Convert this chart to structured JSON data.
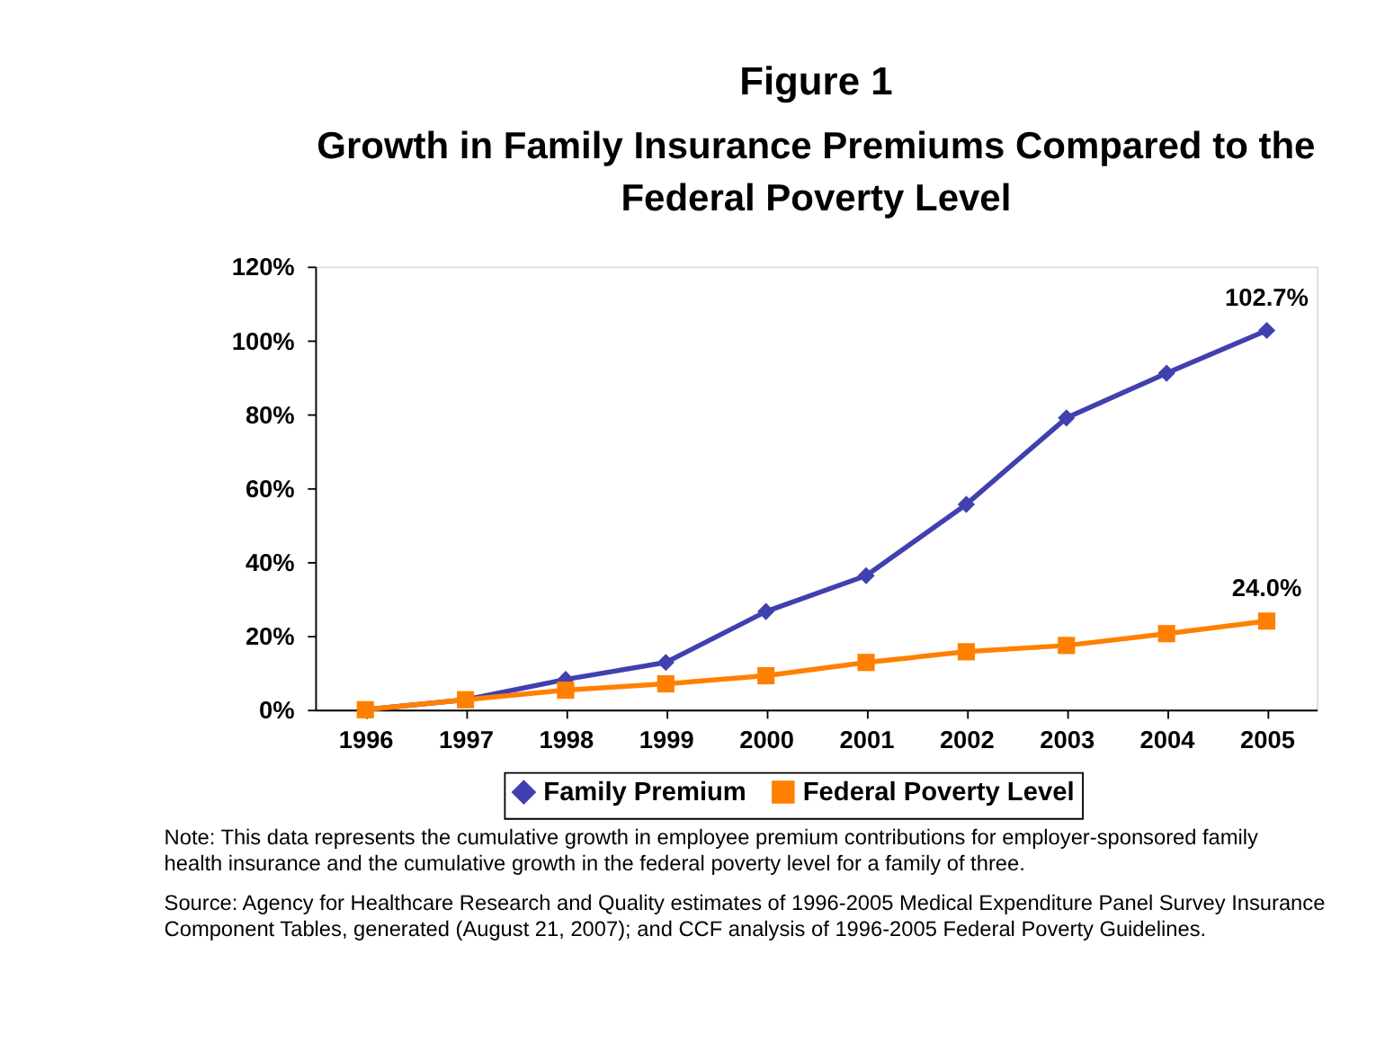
{
  "chart_data": {
    "type": "line",
    "title": "Figure 1",
    "subtitle": "Growth in Family Insurance Premiums Compared to the Federal Poverty Level",
    "categories": [
      "1996",
      "1997",
      "1998",
      "1999",
      "2000",
      "2001",
      "2002",
      "2003",
      "2004",
      "2005"
    ],
    "series": [
      {
        "name": "Family Premium",
        "color": "#4040b0",
        "marker": "diamond",
        "values": [
          0,
          2.7,
          8.2,
          12.8,
          26.6,
          36.3,
          55.6,
          79.0,
          91.1,
          102.7
        ],
        "value_labels": [
          null,
          null,
          null,
          null,
          null,
          null,
          null,
          null,
          null,
          "102.7%"
        ]
      },
      {
        "name": "Federal Poverty Level",
        "color": "#ff8000",
        "marker": "square",
        "values": [
          0,
          2.7,
          5.3,
          7.0,
          9.2,
          12.8,
          15.7,
          17.4,
          20.6,
          24.0
        ],
        "value_labels": [
          null,
          null,
          null,
          null,
          null,
          null,
          null,
          null,
          null,
          "24.0%"
        ]
      }
    ],
    "ylim": [
      0,
      120
    ],
    "yticks": [
      {
        "value": 0,
        "label": "0%"
      },
      {
        "value": 20,
        "label": "20%"
      },
      {
        "value": 40,
        "label": "40%"
      },
      {
        "value": 60,
        "label": "60%"
      },
      {
        "value": 80,
        "label": "80%"
      },
      {
        "value": 100,
        "label": "100%"
      },
      {
        "value": 120,
        "label": "120%"
      }
    ],
    "grid": false,
    "legend": "bottom",
    "line_style": "solid",
    "annotations": [
      "Note: This data represents the cumulative growth in employee premium contributions for employer-sponsored family health insurance and the cumulative growth in the federal poverty level for a family of three.",
      "Source: Agency for Healthcare Research and Quality estimates of 1996-2005 Medical Expenditure Panel Survey Insurance Component Tables, generated (August 21, 2007); and CCF analysis of 1996-2005 Federal Poverty Guidelines."
    ]
  }
}
